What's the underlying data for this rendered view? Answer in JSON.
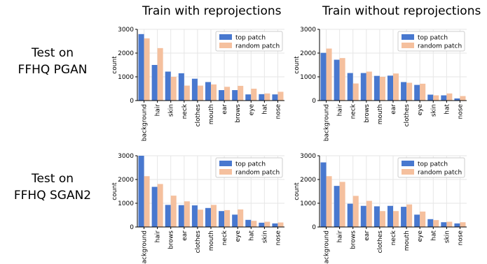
{
  "column_titles": [
    "Train with reprojections",
    "Train without reprojections"
  ],
  "row_labels": [
    {
      "line1": "Test on",
      "line2": "FFHQ PGAN"
    },
    {
      "line1": "Test on",
      "line2": "FFHQ SGAN2"
    }
  ],
  "colors": {
    "top_patch": "#4878cf",
    "random_patch": "#f5c09e",
    "grid": "#e6e6e6"
  },
  "chart_data": [
    {
      "type": "bar",
      "row": "Test on FFHQ PGAN",
      "column": "Train with reprojections",
      "ylabel": "count",
      "ylim": [
        0,
        3000
      ],
      "yticks": [
        0,
        1000,
        2000,
        3000
      ],
      "grid": true,
      "legend_position": "top-right",
      "categories": [
        "background",
        "hair",
        "skin",
        "neck",
        "clothes",
        "mouth",
        "ear",
        "brows",
        "eye",
        "hat",
        "nose"
      ],
      "series": [
        {
          "name": "top patch",
          "values": [
            2800,
            1500,
            1220,
            1150,
            920,
            780,
            440,
            440,
            260,
            270,
            260
          ]
        },
        {
          "name": "random patch",
          "values": [
            2620,
            2210,
            1000,
            630,
            630,
            680,
            580,
            620,
            500,
            300,
            370
          ]
        }
      ]
    },
    {
      "type": "bar",
      "row": "Test on FFHQ PGAN",
      "column": "Train without reprojections",
      "ylabel": "count",
      "ylim": [
        0,
        3000
      ],
      "yticks": [
        0,
        1000,
        2000,
        3000
      ],
      "grid": true,
      "legend_position": "top-right",
      "categories": [
        "background",
        "hair",
        "neck",
        "brows",
        "mouth",
        "ear",
        "clothes",
        "eye",
        "skin",
        "hat",
        "nose"
      ],
      "series": [
        {
          "name": "top patch",
          "values": [
            2010,
            1720,
            1160,
            1160,
            1040,
            1050,
            780,
            660,
            250,
            220,
            90
          ]
        },
        {
          "name": "random patch",
          "values": [
            2190,
            1790,
            720,
            1220,
            1000,
            1140,
            750,
            710,
            220,
            300,
            190
          ]
        }
      ]
    },
    {
      "type": "bar",
      "row": "Test on FFHQ SGAN2",
      "column": "Train with reprojections",
      "ylabel": "count",
      "ylim": [
        0,
        3000
      ],
      "yticks": [
        0,
        1000,
        2000,
        3000
      ],
      "grid": true,
      "legend_position": "top-right",
      "categories": [
        "background",
        "hair",
        "brows",
        "ear",
        "clothes",
        "mouth",
        "neck",
        "eye",
        "hat",
        "skin",
        "nose"
      ],
      "series": [
        {
          "name": "top patch",
          "values": [
            3000,
            1690,
            930,
            920,
            910,
            800,
            670,
            520,
            300,
            180,
            150
          ]
        },
        {
          "name": "random patch",
          "values": [
            2140,
            1810,
            1320,
            1080,
            730,
            930,
            710,
            740,
            260,
            220,
            190
          ]
        }
      ]
    },
    {
      "type": "bar",
      "row": "Test on FFHQ SGAN2",
      "column": "Train without reprojections",
      "ylabel": "count",
      "ylim": [
        0,
        3000
      ],
      "yticks": [
        0,
        1000,
        2000,
        3000
      ],
      "grid": true,
      "legend_position": "top-right",
      "categories": [
        "background",
        "hair",
        "brows",
        "ear",
        "clothes",
        "neck",
        "mouth",
        "eye",
        "hat",
        "skin",
        "nose"
      ],
      "series": [
        {
          "name": "top patch",
          "values": [
            2720,
            1730,
            980,
            890,
            870,
            890,
            850,
            520,
            330,
            200,
            150
          ]
        },
        {
          "name": "random patch",
          "values": [
            2140,
            1900,
            1310,
            1100,
            670,
            670,
            950,
            650,
            290,
            220,
            200
          ]
        }
      ]
    }
  ]
}
